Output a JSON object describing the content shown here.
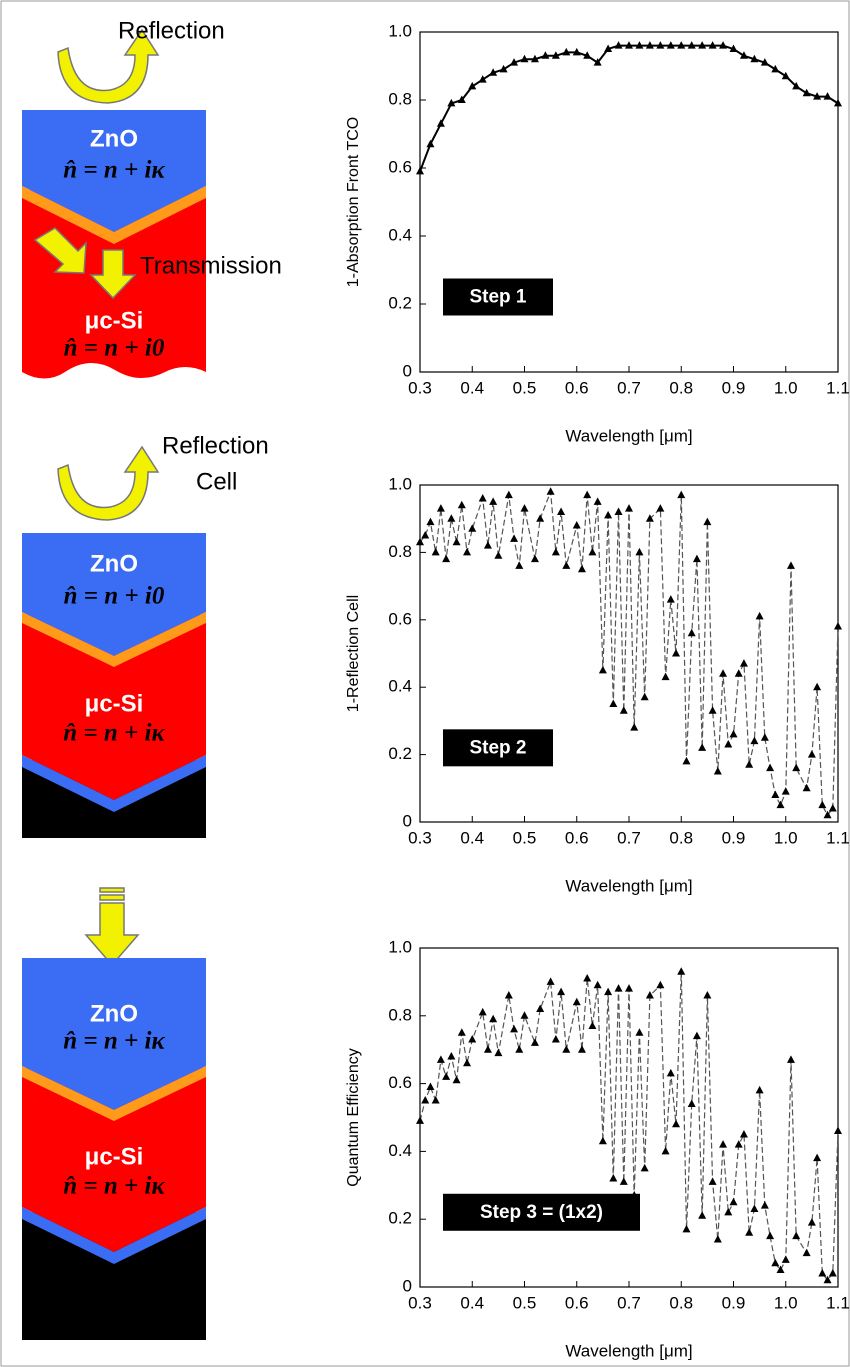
{
  "chart_data": [
    {
      "type": "line",
      "ylabel": "1-Absorption Front TCO",
      "xlabel": "Wavelength [μm]",
      "annotation": "Step 1",
      "color": "#000000",
      "line_style": "solid",
      "x": [
        0.3,
        0.32,
        0.34,
        0.36,
        0.38,
        0.4,
        0.42,
        0.44,
        0.46,
        0.48,
        0.5,
        0.52,
        0.54,
        0.56,
        0.58,
        0.6,
        0.62,
        0.64,
        0.66,
        0.68,
        0.7,
        0.72,
        0.74,
        0.76,
        0.78,
        0.8,
        0.82,
        0.84,
        0.86,
        0.88,
        0.9,
        0.92,
        0.94,
        0.96,
        0.98,
        1.0,
        1.02,
        1.04,
        1.06,
        1.08,
        1.1
      ],
      "values": [
        0.59,
        0.67,
        0.73,
        0.79,
        0.8,
        0.84,
        0.86,
        0.88,
        0.89,
        0.91,
        0.92,
        0.92,
        0.93,
        0.93,
        0.94,
        0.94,
        0.93,
        0.91,
        0.95,
        0.96,
        0.96,
        0.96,
        0.96,
        0.96,
        0.96,
        0.96,
        0.96,
        0.96,
        0.96,
        0.96,
        0.95,
        0.93,
        0.92,
        0.91,
        0.89,
        0.87,
        0.84,
        0.82,
        0.81,
        0.81,
        0.79
      ],
      "xlim": [
        0.3,
        1.1
      ],
      "xticks": [
        0.3,
        0.4,
        0.5,
        0.6,
        0.7,
        0.8,
        0.9,
        {
          "value": 1,
          "label": "1.0"
        },
        1.1
      ],
      "ylim": [
        0,
        1
      ],
      "yticks": [
        0,
        0.2,
        0.4,
        0.6,
        0.8,
        {
          "value": 1,
          "label": "1.0"
        }
      ]
    },
    {
      "type": "line",
      "ylabel": "1-Reflection Cell",
      "xlabel": "Wavelength [μm]",
      "annotation": "Step 2",
      "color": "#555555",
      "line_style": "dashed",
      "x": [
        0.3,
        0.31,
        0.32,
        0.33,
        0.34,
        0.35,
        0.36,
        0.37,
        0.38,
        0.39,
        0.4,
        0.42,
        0.43,
        0.44,
        0.45,
        0.47,
        0.48,
        0.49,
        0.5,
        0.52,
        0.53,
        0.55,
        0.56,
        0.57,
        0.58,
        0.6,
        0.61,
        0.62,
        0.63,
        0.64,
        0.65,
        0.66,
        0.67,
        0.68,
        0.69,
        0.7,
        0.71,
        0.72,
        0.73,
        0.74,
        0.76,
        0.77,
        0.78,
        0.79,
        0.8,
        0.81,
        0.82,
        0.83,
        0.84,
        0.85,
        0.86,
        0.87,
        0.88,
        0.89,
        0.9,
        0.91,
        0.92,
        0.93,
        0.94,
        0.95,
        0.96,
        0.97,
        0.98,
        0.99,
        1.0,
        1.01,
        1.02,
        1.04,
        1.05,
        1.06,
        1.07,
        1.08,
        1.09,
        1.1
      ],
      "values": [
        0.83,
        0.85,
        0.89,
        0.8,
        0.93,
        0.78,
        0.9,
        0.83,
        0.94,
        0.8,
        0.87,
        0.96,
        0.82,
        0.95,
        0.79,
        0.97,
        0.84,
        0.76,
        0.93,
        0.78,
        0.9,
        0.98,
        0.8,
        0.92,
        0.76,
        0.88,
        0.75,
        0.97,
        0.8,
        0.95,
        0.45,
        0.91,
        0.35,
        0.92,
        0.33,
        0.93,
        0.28,
        0.8,
        0.37,
        0.9,
        0.93,
        0.43,
        0.66,
        0.5,
        0.97,
        0.18,
        0.56,
        0.78,
        0.22,
        0.89,
        0.33,
        0.15,
        0.44,
        0.23,
        0.26,
        0.44,
        0.47,
        0.17,
        0.24,
        0.61,
        0.25,
        0.16,
        0.08,
        0.05,
        0.09,
        0.76,
        0.16,
        0.1,
        0.2,
        0.4,
        0.05,
        0.02,
        0.04,
        0.58
      ],
      "xlim": [
        0.3,
        1.1
      ],
      "xticks": [
        0.3,
        0.4,
        0.5,
        0.6,
        0.7,
        0.8,
        0.9,
        {
          "value": 1,
          "label": "1.0"
        },
        1.1
      ],
      "ylim": [
        0,
        1
      ],
      "yticks": [
        0,
        0.2,
        0.4,
        0.6,
        0.8,
        {
          "value": 1,
          "label": "1.0"
        }
      ]
    },
    {
      "type": "line",
      "ylabel": "Quantum Efficiency",
      "xlabel": "Wavelength [μm]",
      "annotation": "Step 3 = (1x2)",
      "color": "#555555",
      "line_style": "dashed",
      "x": [
        0.3,
        0.31,
        0.32,
        0.33,
        0.34,
        0.35,
        0.36,
        0.37,
        0.38,
        0.39,
        0.4,
        0.42,
        0.43,
        0.44,
        0.45,
        0.47,
        0.48,
        0.49,
        0.5,
        0.52,
        0.53,
        0.55,
        0.56,
        0.57,
        0.58,
        0.6,
        0.61,
        0.62,
        0.63,
        0.64,
        0.65,
        0.66,
        0.67,
        0.68,
        0.69,
        0.7,
        0.71,
        0.72,
        0.73,
        0.74,
        0.76,
        0.77,
        0.78,
        0.79,
        0.8,
        0.81,
        0.82,
        0.83,
        0.84,
        0.85,
        0.86,
        0.87,
        0.88,
        0.89,
        0.9,
        0.91,
        0.92,
        0.93,
        0.94,
        0.95,
        0.96,
        0.97,
        0.98,
        0.99,
        1.0,
        1.01,
        1.02,
        1.04,
        1.05,
        1.06,
        1.07,
        1.08,
        1.09,
        1.1
      ],
      "values": [
        0.49,
        0.55,
        0.59,
        0.55,
        0.67,
        0.62,
        0.68,
        0.61,
        0.75,
        0.66,
        0.73,
        0.81,
        0.7,
        0.79,
        0.69,
        0.86,
        0.76,
        0.7,
        0.8,
        0.72,
        0.82,
        0.9,
        0.73,
        0.87,
        0.7,
        0.84,
        0.7,
        0.91,
        0.77,
        0.89,
        0.43,
        0.87,
        0.32,
        0.88,
        0.31,
        0.88,
        0.27,
        0.75,
        0.35,
        0.86,
        0.89,
        0.4,
        0.63,
        0.48,
        0.93,
        0.17,
        0.54,
        0.74,
        0.21,
        0.86,
        0.31,
        0.14,
        0.42,
        0.22,
        0.25,
        0.42,
        0.45,
        0.16,
        0.23,
        0.58,
        0.24,
        0.15,
        0.07,
        0.05,
        0.08,
        0.67,
        0.15,
        0.1,
        0.19,
        0.38,
        0.04,
        0.02,
        0.04,
        0.46
      ],
      "xlim": [
        0.3,
        1.1
      ],
      "xticks": [
        0.3,
        0.4,
        0.5,
        0.6,
        0.7,
        0.8,
        0.9,
        {
          "value": 1,
          "label": "1.0"
        },
        1.1
      ],
      "ylim": [
        0,
        1
      ],
      "yticks": [
        0,
        0.2,
        0.4,
        0.6,
        0.8,
        {
          "value": 1,
          "label": "1.0"
        }
      ]
    }
  ],
  "diagrams": [
    {
      "reflection": "Reflection",
      "top_layer": "ZnO",
      "top_index": "n̂ = n + iκ",
      "transmission": "Transmission",
      "bottom_layer": "μc-Si",
      "bottom_index": "n̂ = n + i0"
    },
    {
      "reflection": "Reflection",
      "reflection_2": "Cell",
      "top_layer": "ZnO",
      "top_index": "n̂ = n + i0",
      "bottom_layer": "μc-Si",
      "bottom_index": "n̂ = n + iκ"
    },
    {
      "top_layer": "ZnO",
      "top_index": "n̂ = n + iκ",
      "bottom_layer": "μc-Si",
      "bottom_index": "n̂ = n + iκ"
    }
  ]
}
